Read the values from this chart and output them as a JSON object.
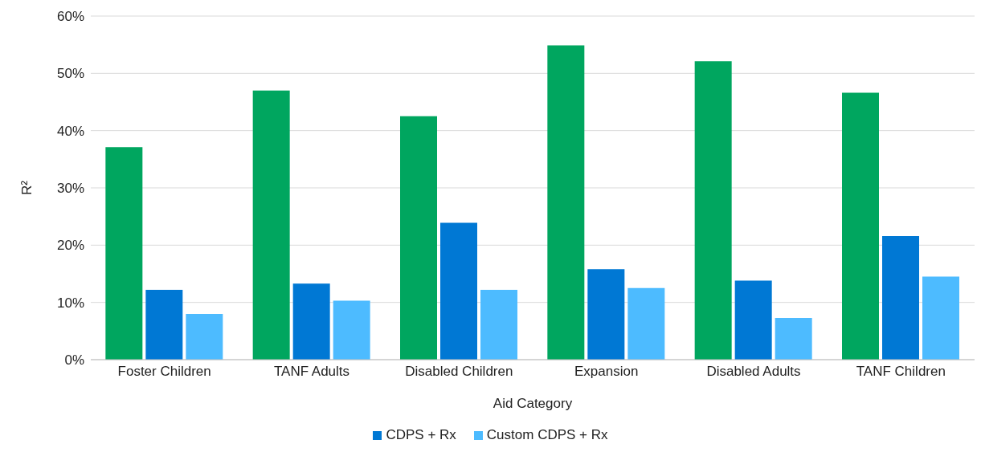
{
  "chart_data": {
    "type": "bar",
    "xlabel": "Aid Category",
    "ylabel": "R²",
    "categories": [
      "Foster Children",
      "TANF Adults",
      "Disabled Children",
      "Expansion",
      "Disabled Adults",
      "TANF Children"
    ],
    "series": [
      {
        "color": "#00a65f",
        "values": [
          37.1,
          47.0,
          42.5,
          54.9,
          52.1,
          46.6
        ]
      },
      {
        "name": "CDPS + Rx",
        "color": "#0078d4",
        "values": [
          12.2,
          13.3,
          23.9,
          15.8,
          13.8,
          21.6
        ]
      },
      {
        "name": "Custom CDPS + Rx",
        "color": "#4dbbff",
        "values": [
          8.0,
          10.3,
          12.2,
          12.5,
          7.3,
          14.5
        ]
      }
    ],
    "ylim": [
      0,
      60
    ],
    "yticks": [
      {
        "value": 0,
        "label": "0%"
      },
      {
        "value": 10,
        "label": "10%"
      },
      {
        "value": 20,
        "label": "20%"
      },
      {
        "value": 30,
        "label": "30%"
      },
      {
        "value": 40,
        "label": "40%"
      },
      {
        "value": 50,
        "label": "50%"
      },
      {
        "value": 60,
        "label": "60%"
      }
    ],
    "grid": "y",
    "legend": "bottom"
  }
}
